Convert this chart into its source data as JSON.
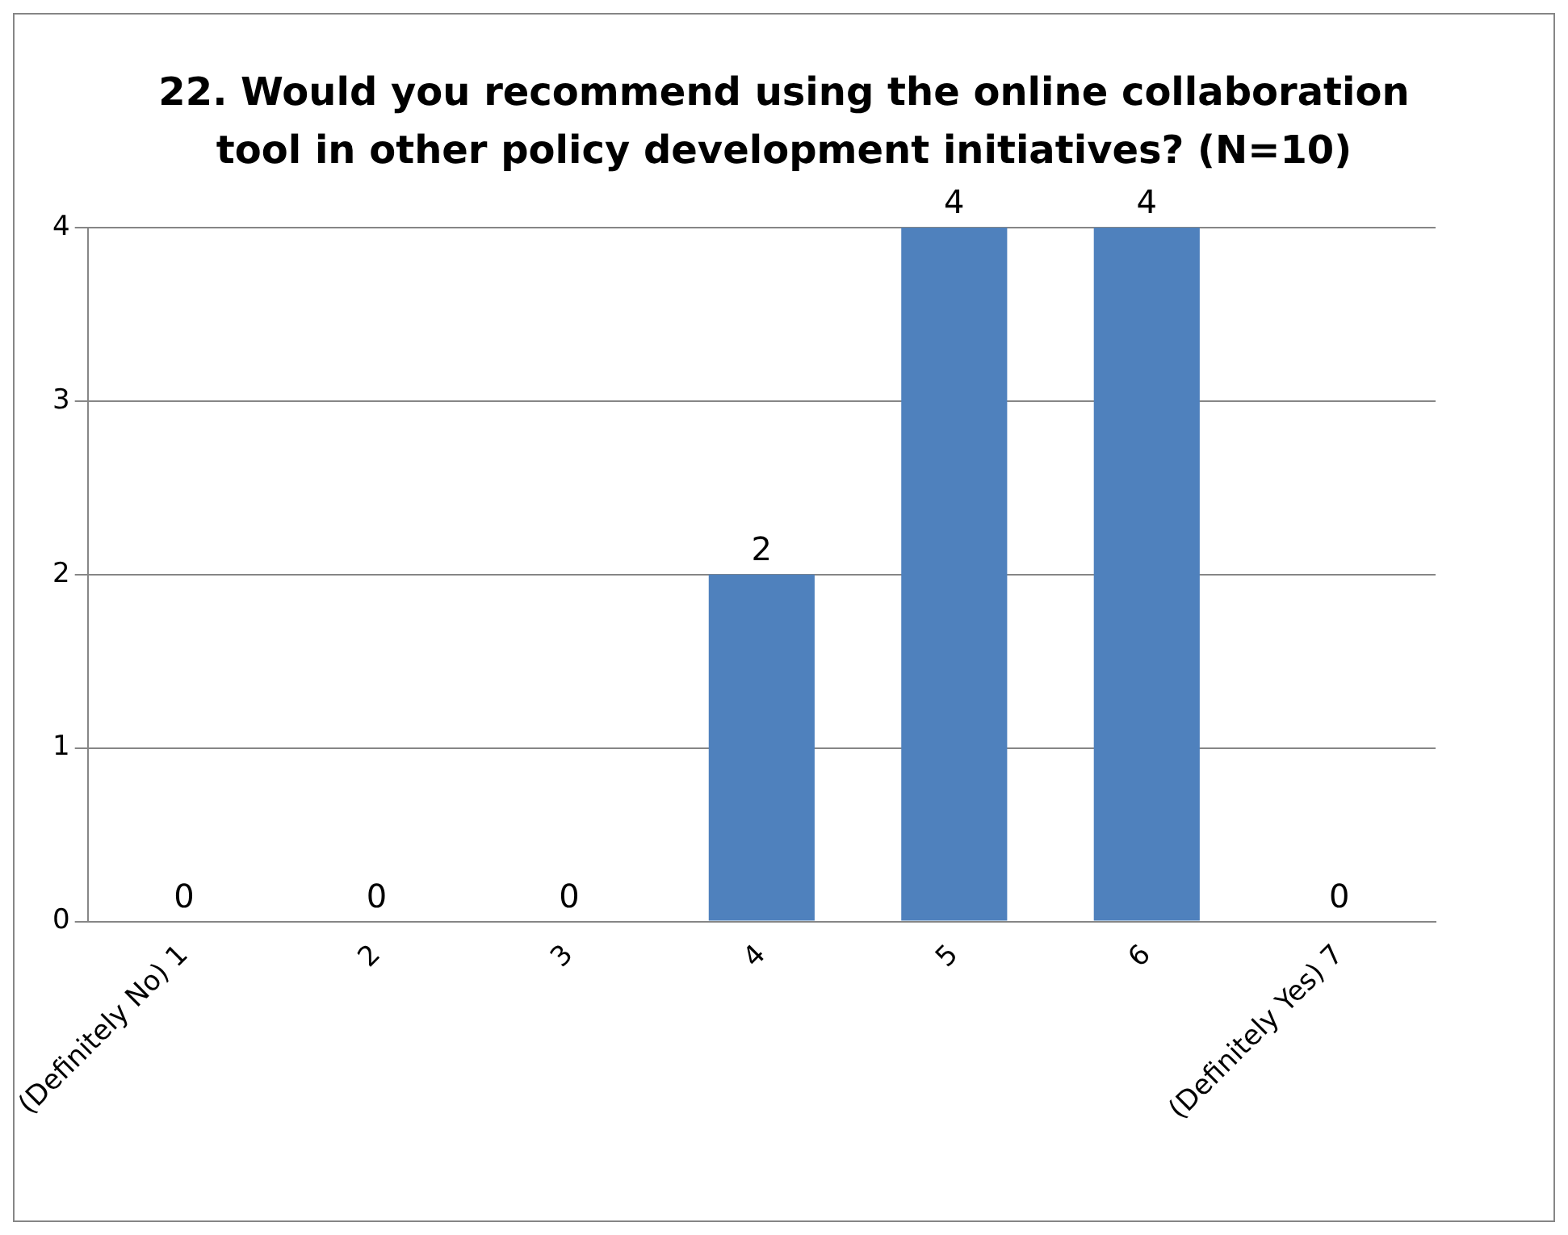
{
  "chart_data": {
    "type": "bar",
    "title": "22. Would you recommend using the online collaboration tool in other policy development initiatives? (N=10)",
    "categories": [
      "(Definitely No) 1",
      "2",
      "3",
      "4",
      "5",
      "6",
      "(Definitely Yes) 7"
    ],
    "values": [
      0,
      0,
      0,
      2,
      4,
      4,
      0
    ],
    "color": "#4f81bd",
    "ylim": [
      0,
      4
    ],
    "yticks": [
      0,
      1,
      2,
      3,
      4
    ],
    "grid": "y",
    "data_labels": true
  }
}
